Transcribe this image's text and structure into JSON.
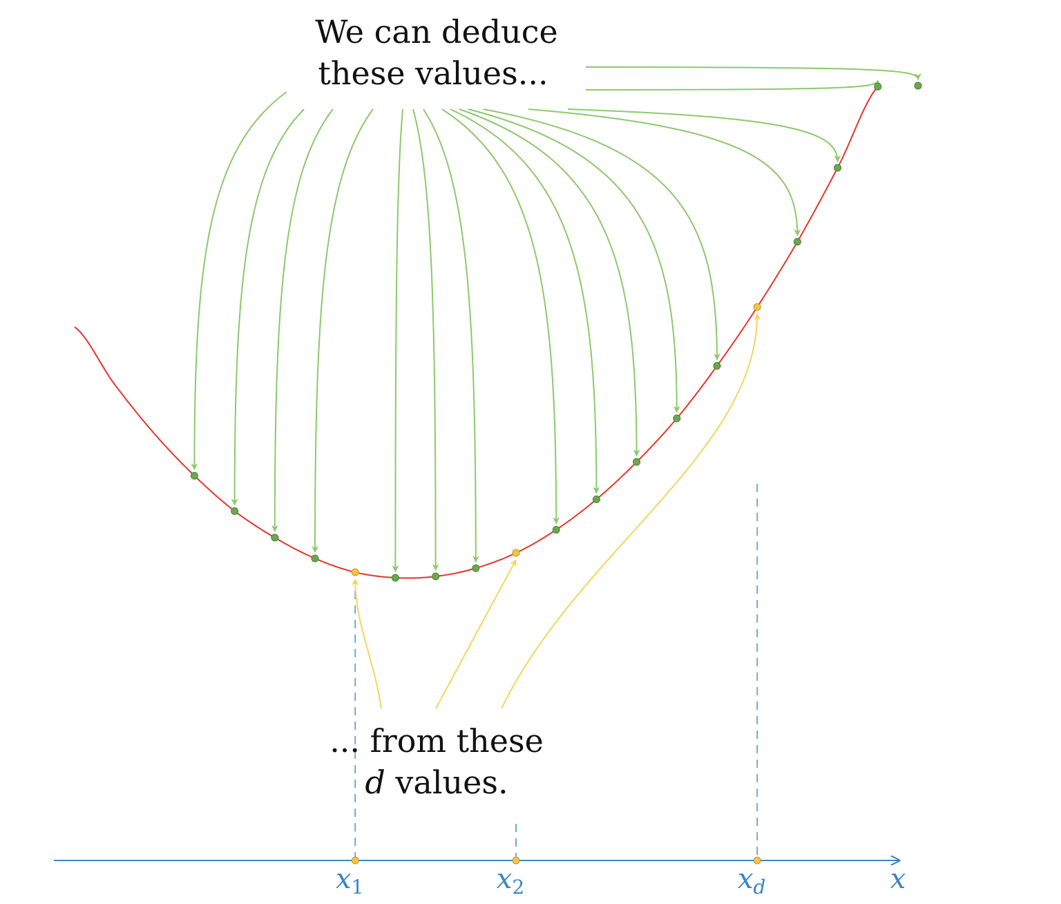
{
  "top_caption": {
    "line1": "We can deduce",
    "line2": "these values..."
  },
  "bottom_caption": {
    "line1": "...  from these",
    "line2_var": "d",
    "line2_rest": " values."
  },
  "axis": {
    "label": "x",
    "color": "#3a86c8"
  },
  "known_points": [
    {
      "var": "x",
      "sub": "1",
      "t": 1.0
    },
    {
      "var": "x",
      "sub": "2",
      "t": 5.0
    },
    {
      "var": "x",
      "sub": "d",
      "t": 11.0
    }
  ],
  "deduced_t": [
    -3,
    -2,
    -1,
    0,
    2,
    3,
    4,
    6,
    7,
    8,
    9,
    10,
    12,
    13,
    14,
    15
  ],
  "colors": {
    "curve": "#e8342a",
    "deduced_arrow": "#8cc96b",
    "deduced_point": "#6aa84f",
    "known_arrow": "#f5d55a",
    "known_point": "#f5c542",
    "dashed": "#6fa8d6",
    "text": "#111111"
  }
}
